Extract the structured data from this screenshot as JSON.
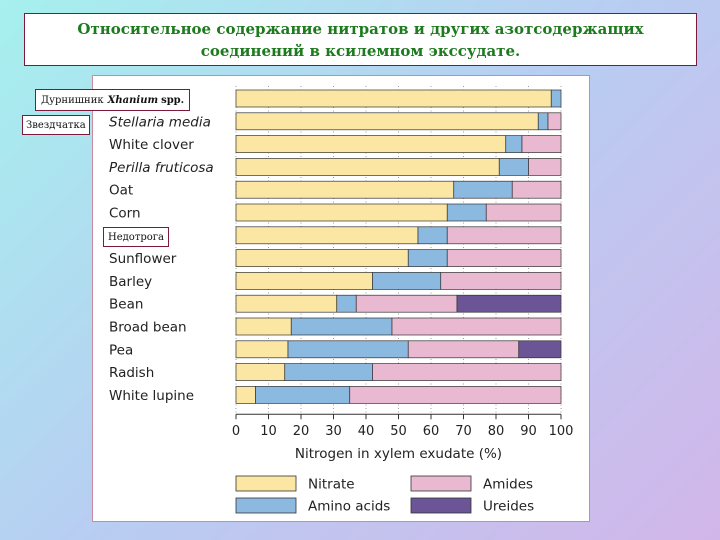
{
  "title": "Относительное содержание нитратов и других азотсодержащих соединений в ксилемном экссудате.",
  "callouts": {
    "xanthium_ru": "Дурнишник",
    "xanthium_latin": "Xhanium",
    "xanthium_spp": "spp.",
    "stellaria_ru": "Звездчатка",
    "ambrosia_ru": "Недотрога"
  },
  "colors": {
    "nitrate": "#fbe7a3",
    "amino_acids": "#8bb9e0",
    "amides": "#e8b9d0",
    "ureides": "#6b5597",
    "axis": "#333333"
  },
  "chart_data": {
    "type": "bar",
    "orientation": "horizontal",
    "stacked": true,
    "categories": [
      "",
      "Stellaria media",
      "White clover",
      "Perilla fruticosa",
      "Oat",
      "Corn",
      "",
      "Sunflower",
      "Barley",
      "Bean",
      "Broad bean",
      "Pea",
      "Radish",
      "White lupine"
    ],
    "series": [
      {
        "name": "Nitrate",
        "color": "#fbe7a3",
        "values": [
          97,
          93,
          83,
          81,
          67,
          65,
          56,
          53,
          42,
          31,
          17,
          16,
          15,
          6
        ]
      },
      {
        "name": "Amino acids",
        "color": "#8bb9e0",
        "values": [
          3,
          3,
          5,
          9,
          18,
          12,
          9,
          12,
          21,
          6,
          31,
          37,
          27,
          29
        ]
      },
      {
        "name": "Amides",
        "color": "#e8b9d0",
        "values": [
          0,
          4,
          12,
          10,
          15,
          23,
          35,
          35,
          37,
          31,
          52,
          34,
          58,
          65
        ]
      },
      {
        "name": "Ureides",
        "color": "#6b5597",
        "values": [
          0,
          0,
          0,
          0,
          0,
          0,
          0,
          0,
          0,
          32,
          0,
          13,
          0,
          0
        ]
      }
    ],
    "xlim": [
      0,
      100
    ],
    "xticks": [
      0,
      10,
      20,
      30,
      40,
      50,
      60,
      70,
      80,
      90,
      100
    ],
    "xlabel": "Nitrogen in xylem exudate (%)",
    "ylabel": "",
    "grid": "vertical dotted",
    "legend": {
      "placement": "bottom",
      "items": [
        {
          "label": "Nitrate",
          "color": "#fbe7a3"
        },
        {
          "label": "Amides",
          "color": "#e8b9d0"
        },
        {
          "label": "Amino acids",
          "color": "#8bb9e0"
        },
        {
          "label": "Ureides",
          "color": "#6b5597"
        }
      ]
    }
  }
}
